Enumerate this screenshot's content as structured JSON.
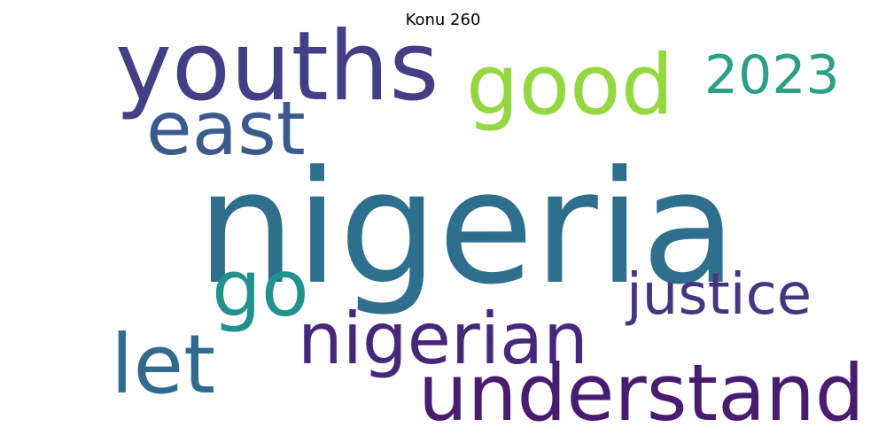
{
  "title": "Konu 260",
  "words": {
    "nigeria": {
      "text": "nigeria",
      "color": "#2e6f8e"
    },
    "youths": {
      "text": "youths",
      "color": "#433e85"
    },
    "good": {
      "text": "good",
      "color": "#93d741"
    },
    "year_2023": {
      "text": "2023",
      "color": "#29a087"
    },
    "east": {
      "text": "east",
      "color": "#3c5a8c"
    },
    "go": {
      "text": "go",
      "color": "#22908c"
    },
    "justice": {
      "text": "justice",
      "color": "#46357f"
    },
    "nigerian": {
      "text": "nigerian",
      "color": "#46287a"
    },
    "let": {
      "text": "let",
      "color": "#2f6b8e"
    },
    "understand": {
      "text": "understand",
      "color": "#481d6f"
    }
  }
}
